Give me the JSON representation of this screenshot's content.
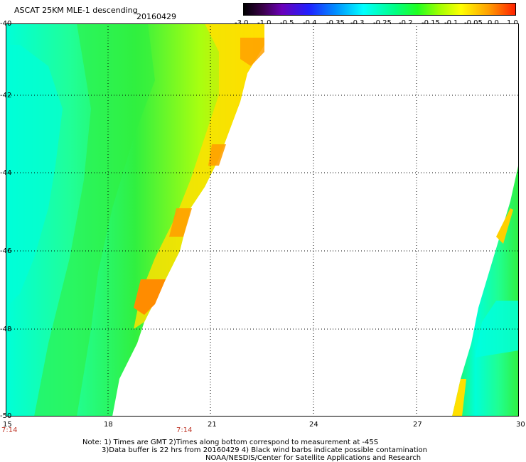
{
  "header": {
    "title": "ASCAT 25KM MLE-1 descending",
    "date": "20160429"
  },
  "colorbar": {
    "ticks": [
      "-3.0",
      "-1.0",
      "-0.5",
      "-0.4",
      "-0.35",
      "-0.3",
      "-0.25",
      "-0.2",
      "-0.15",
      "-0.1",
      "-0.05",
      "0.0",
      "1.0"
    ]
  },
  "axes": {
    "lat_labels": [
      "-40",
      "-42",
      "-44",
      "-46",
      "-48",
      "-50"
    ],
    "lon_labels": [
      "15",
      "18",
      "21",
      "24",
      "27",
      "30"
    ],
    "time_labels": [
      "7:14",
      "7:14"
    ]
  },
  "notes": {
    "line1": "Note: 1) Times are GMT 2)Times along bottom correspond to measurement at -45S",
    "line2": "3)Data buffer is 22 hrs from 20160429 4) Black wind barbs indicate possible contamination",
    "line3": "NOAA/NESDIS/Center for Satellite Applications and Research"
  },
  "colors": {
    "cyan": "#00ffd0",
    "aqua_green": "#20ff90",
    "green": "#30f030",
    "yellow_green": "#a0ff10",
    "yellow": "#ffe000",
    "orange": "#ff8c00"
  }
}
